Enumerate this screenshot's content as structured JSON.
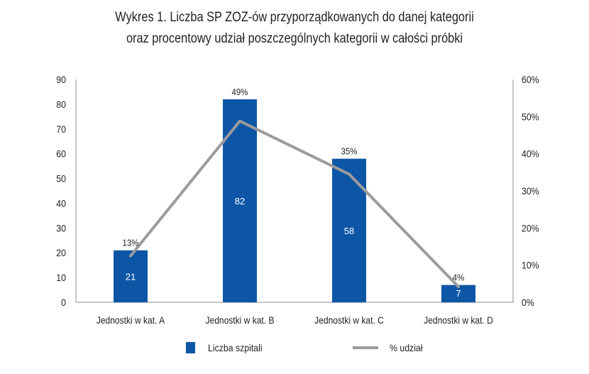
{
  "chart_data": {
    "type": "bar",
    "title_lines": [
      "Wykres 1. Liczba SP ZOZ-ów przyporządkowanych do danej kategorii",
      "oraz procentowy udział poszczególnych kategorii w całości próbki"
    ],
    "categories": [
      "Jednostki w kat. A",
      "Jednostki w kat. B",
      "Jednostki w kat. C",
      "Jednostki w kat. D"
    ],
    "series": [
      {
        "name": "Liczba szpitali",
        "type": "bar",
        "axis": "left",
        "values": [
          21,
          82,
          58,
          7
        ],
        "value_labels": [
          "21",
          "82",
          "58",
          "7"
        ],
        "color": "#0d56a6",
        "label_color": "#ffffff"
      },
      {
        "name": "% udział",
        "type": "line",
        "axis": "right",
        "values": [
          12.5,
          48.8,
          34.5,
          4.2
        ],
        "value_labels": [
          "13%",
          "49%",
          "35%",
          "4%"
        ],
        "color": "#9b9b9b"
      }
    ],
    "y_left": {
      "min": 0,
      "max": 90,
      "ticks": [
        0,
        10,
        20,
        30,
        40,
        50,
        60,
        70,
        80,
        90
      ],
      "tick_labels": [
        "0",
        "10",
        "20",
        "30",
        "40",
        "50",
        "60",
        "70",
        "80",
        "90"
      ]
    },
    "y_right": {
      "min": 0,
      "max": 60,
      "ticks": [
        0,
        10,
        20,
        30,
        40,
        50,
        60
      ],
      "tick_labels": [
        "0%",
        "10%",
        "20%",
        "30%",
        "40%",
        "50%",
        "60%"
      ]
    },
    "grid": false,
    "legend_position": "bottom",
    "legend": [
      "Liczba szpitali",
      "% udział"
    ]
  }
}
